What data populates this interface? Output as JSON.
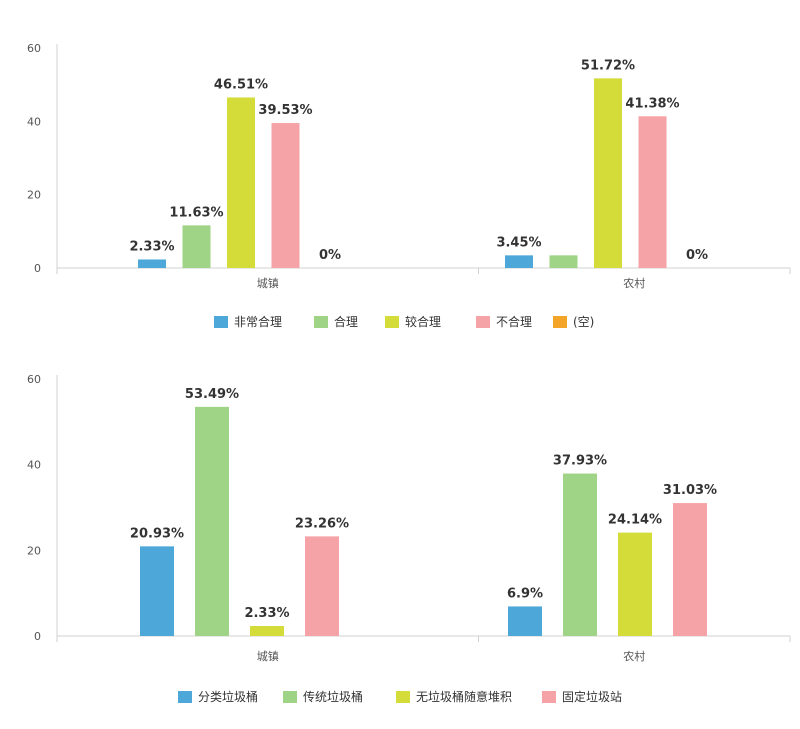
{
  "chart_data": [
    {
      "type": "bar",
      "categories": [
        "城镇",
        "农村"
      ],
      "series": [
        {
          "name": "非常合理",
          "color": "#4ea7d9",
          "values": [
            2.33,
            3.45
          ],
          "labels": [
            "2.33%",
            "3.45%"
          ]
        },
        {
          "name": "合理",
          "color": "#9fd386",
          "values": [
            11.63,
            3.45
          ],
          "labels": [
            "11.63%",
            ""
          ]
        },
        {
          "name": "较合理",
          "color": "#d4dc3a",
          "values": [
            46.51,
            51.72
          ],
          "labels": [
            "46.51%",
            "51.72%"
          ]
        },
        {
          "name": "不合理",
          "color": "#f5a3a6",
          "values": [
            39.53,
            41.38
          ],
          "labels": [
            "39.53%",
            "41.38%"
          ]
        },
        {
          "name": "(空)",
          "color": "#f4a428",
          "values": [
            0,
            0
          ],
          "labels": [
            "0%",
            "0%"
          ]
        }
      ],
      "yticks": [
        "0",
        "20",
        "40",
        "60"
      ],
      "ylim": [
        0,
        60
      ],
      "grid": false,
      "legend": "bottom"
    },
    {
      "type": "bar",
      "categories": [
        "城镇",
        "农村"
      ],
      "series": [
        {
          "name": "分类垃圾桶",
          "color": "#4ea7d9",
          "values": [
            20.93,
            6.9
          ],
          "labels": [
            "20.93%",
            "6.9%"
          ]
        },
        {
          "name": "传统垃圾桶",
          "color": "#9fd386",
          "values": [
            53.49,
            37.93
          ],
          "labels": [
            "53.49%",
            "37.93%"
          ]
        },
        {
          "name": "无垃圾桶随意堆积",
          "color": "#d4dc3a",
          "values": [
            2.33,
            24.14
          ],
          "labels": [
            "2.33%",
            "24.14%"
          ]
        },
        {
          "name": "固定垃圾站",
          "color": "#f5a3a6",
          "values": [
            23.26,
            31.03
          ],
          "labels": [
            "23.26%",
            "31.03%"
          ]
        }
      ],
      "yticks": [
        "0",
        "20",
        "40",
        "60"
      ],
      "ylim": [
        0,
        60
      ],
      "grid": false,
      "legend": "bottom"
    }
  ]
}
